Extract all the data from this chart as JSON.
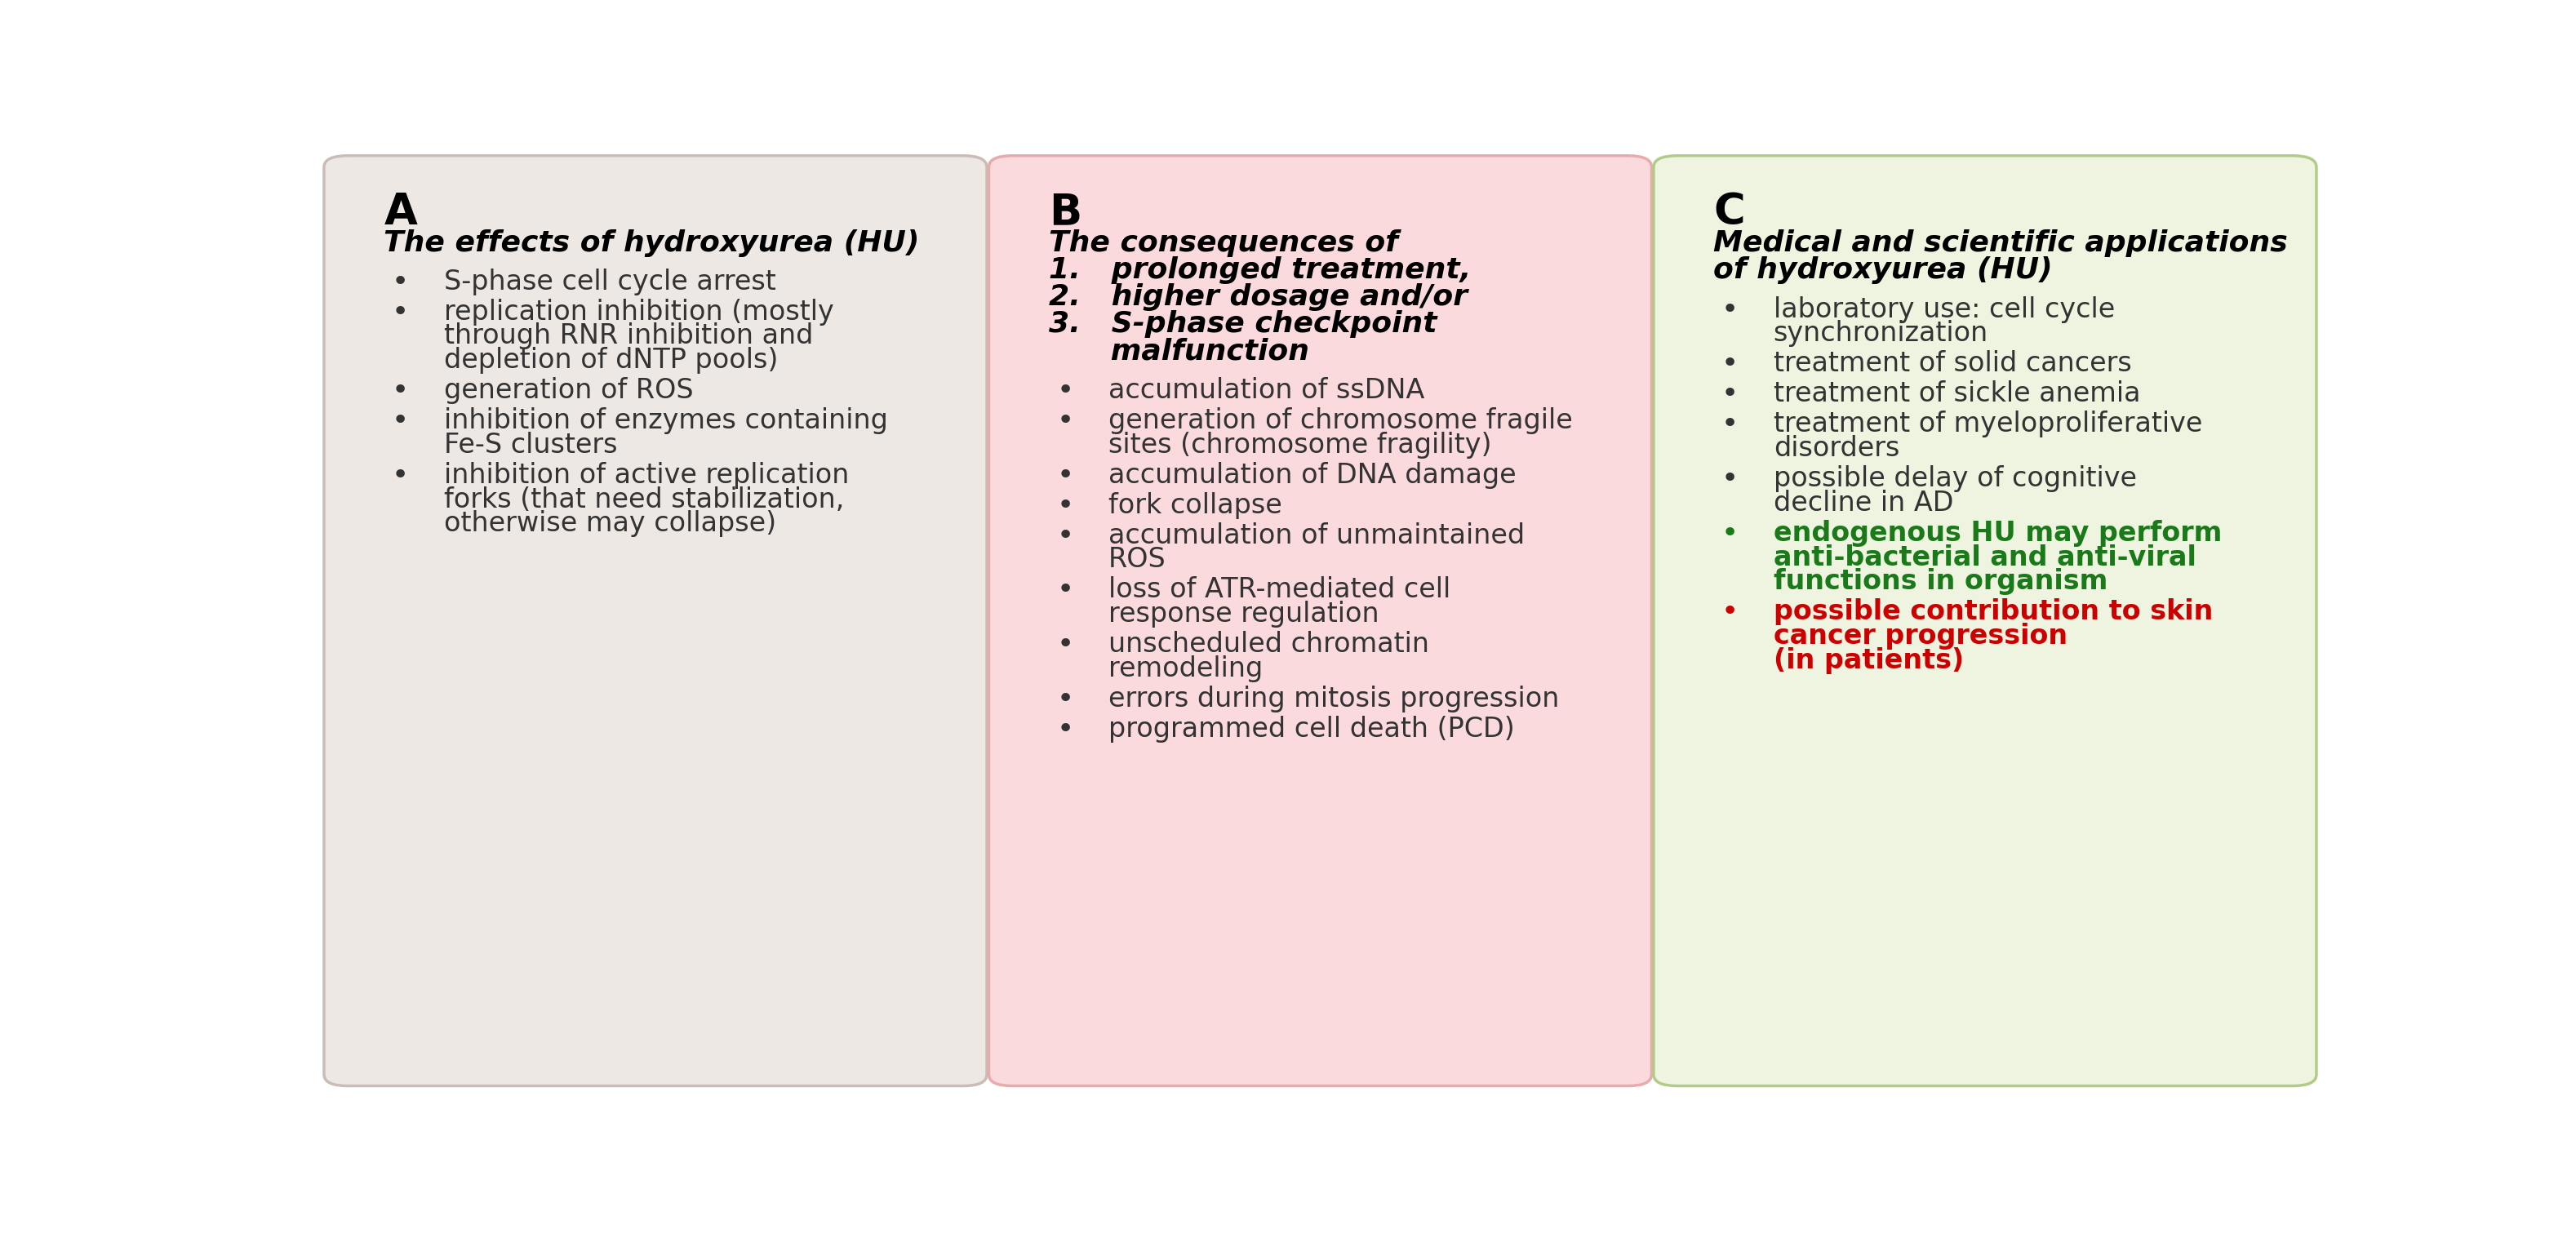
{
  "fig_width": 31.56,
  "fig_height": 15.12,
  "bg_color": "#ffffff",
  "panels": [
    {
      "label": "A",
      "bg_color": "#ede8e3",
      "border_color": "#c9bdb5",
      "label_fontsize": 38,
      "title": "The effects of hydroxyurea (HU)",
      "title_fontsize": 26,
      "item_fontsize": 24,
      "bullet_fontsize": 26,
      "items": [
        {
          "text": "S-phase cell cycle arrest",
          "color": "#333333",
          "bullet_color": "#333333",
          "bold": false
        },
        {
          "text": "replication inhibition (mostly\nthrough RNR inhibition and\ndepletion of dNTP pools)",
          "color": "#333333",
          "bullet_color": "#333333",
          "bold": false
        },
        {
          "text": "generation of ROS",
          "color": "#333333",
          "bullet_color": "#333333",
          "bold": false
        },
        {
          "text": "inhibition of enzymes containing\nFe-S clusters",
          "color": "#333333",
          "bullet_color": "#333333",
          "bold": false
        },
        {
          "text": "inhibition of active replication\nforks (that need stabilization,\notherwise may collapse)",
          "color": "#333333",
          "bullet_color": "#333333",
          "bold": false
        }
      ]
    },
    {
      "label": "B",
      "bg_color": "#fadadd",
      "border_color": "#e8aaaa",
      "label_fontsize": 38,
      "title_fontsize": 26,
      "item_fontsize": 24,
      "bullet_fontsize": 26,
      "title_lines": [
        "The consequences of",
        "1.   prolonged treatment,",
        "2.   higher dosage and/or",
        "3.   S-phase checkpoint",
        "      malfunction"
      ],
      "items": [
        {
          "text": "accumulation of ssDNA",
          "color": "#333333",
          "bullet_color": "#333333",
          "bold": false
        },
        {
          "text": "generation of chromosome fragile\nsites (chromosome fragility)",
          "color": "#333333",
          "bullet_color": "#333333",
          "bold": false
        },
        {
          "text": "accumulation of DNA damage",
          "color": "#333333",
          "bullet_color": "#333333",
          "bold": false
        },
        {
          "text": "fork collapse",
          "color": "#333333",
          "bullet_color": "#333333",
          "bold": false
        },
        {
          "text": "accumulation of unmaintained\nROS",
          "color": "#333333",
          "bullet_color": "#333333",
          "bold": false
        },
        {
          "text": "loss of ATR-mediated cell\nresponse regulation",
          "color": "#333333",
          "bullet_color": "#333333",
          "bold": false
        },
        {
          "text": "unscheduled chromatin\nremodeling",
          "color": "#333333",
          "bullet_color": "#333333",
          "bold": false
        },
        {
          "text": "errors during mitosis progression",
          "color": "#333333",
          "bullet_color": "#333333",
          "bold": false
        },
        {
          "text": "programmed cell death (PCD)",
          "color": "#333333",
          "bullet_color": "#333333",
          "bold": false
        }
      ]
    },
    {
      "label": "C",
      "bg_color": "#eef4e0",
      "border_color": "#b0cc88",
      "label_fontsize": 38,
      "title_fontsize": 26,
      "item_fontsize": 24,
      "bullet_fontsize": 26,
      "title_lines": [
        "Medical and scientific applications",
        "of hydroxyurea (HU)"
      ],
      "items": [
        {
          "text": "laboratory use: cell cycle\nsynchronization",
          "color": "#333333",
          "bullet_color": "#333333",
          "bold": false
        },
        {
          "text": "treatment of solid cancers",
          "color": "#333333",
          "bullet_color": "#333333",
          "bold": false
        },
        {
          "text": "treatment of sickle anemia",
          "color": "#333333",
          "bullet_color": "#333333",
          "bold": false
        },
        {
          "text": "treatment of myeloproliferative\ndisorders",
          "color": "#333333",
          "bullet_color": "#333333",
          "bold": false
        },
        {
          "text": "possible delay of cognitive\ndecline in AD",
          "color": "#333333",
          "bullet_color": "#333333",
          "bold": false
        },
        {
          "text": "endogenous HU may perform\nanti-bacterial and anti-viral\nfunctions in organism",
          "color": "#1a7a1a",
          "bullet_color": "#1a7a1a",
          "bold": true
        },
        {
          "text": "possible contribution to skin\ncancer progression\n(in patients)",
          "color": "#cc0000",
          "bullet_color": "#cc0000",
          "bold": true
        }
      ]
    }
  ]
}
